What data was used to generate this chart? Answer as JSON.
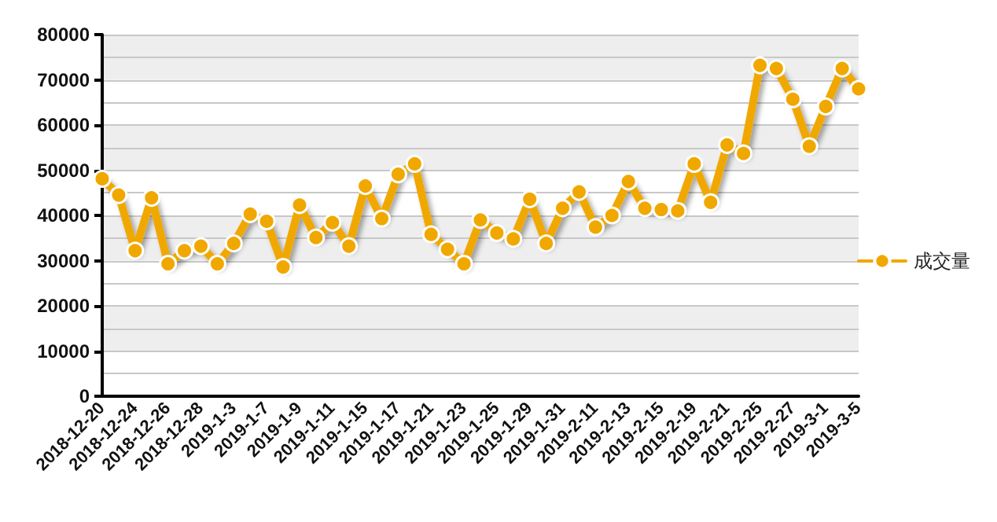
{
  "chart_data": {
    "type": "line",
    "categories": [
      "2018-12-20",
      null,
      "2018-12-24",
      null,
      "2018-12-26",
      null,
      "2018-12-28",
      null,
      "2019-1-3",
      null,
      "2019-1-7",
      null,
      "2019-1-9",
      null,
      "2019-1-11",
      null,
      "2019-1-15",
      null,
      "2019-1-17",
      null,
      "2019-1-21",
      null,
      "2019-1-23",
      null,
      "2019-1-25",
      null,
      "2019-1-29",
      null,
      "2019-1-31",
      null,
      "2019-2-11",
      null,
      "2019-2-13",
      null,
      "2019-2-15",
      null,
      "2019-2-19",
      null,
      "2019-2-21",
      null,
      "2019-2-25",
      null,
      "2019-2-27",
      null,
      "2019-3-1",
      null,
      "2019-3-5"
    ],
    "series": [
      {
        "name": "成交量",
        "color": "#f0a800",
        "values": [
          48100,
          44500,
          32200,
          43900,
          29300,
          32200,
          33200,
          29300,
          33800,
          40300,
          38700,
          28600,
          42300,
          35100,
          38400,
          33200,
          46500,
          39300,
          49100,
          51400,
          35800,
          32500,
          29300,
          39000,
          36100,
          34800,
          43600,
          33800,
          41600,
          45200,
          37400,
          40000,
          47500,
          41600,
          41300,
          41000,
          51400,
          42900,
          55600,
          53700,
          73200,
          72500,
          65700,
          55300,
          64100,
          72500,
          68000
        ]
      }
    ],
    "ylim": [
      0,
      80000
    ],
    "yticks": [
      0,
      10000,
      20000,
      30000,
      40000,
      50000,
      60000,
      70000,
      80000
    ],
    "grid": "y",
    "legend": "right",
    "marker": "circle",
    "line_style": "solid"
  }
}
